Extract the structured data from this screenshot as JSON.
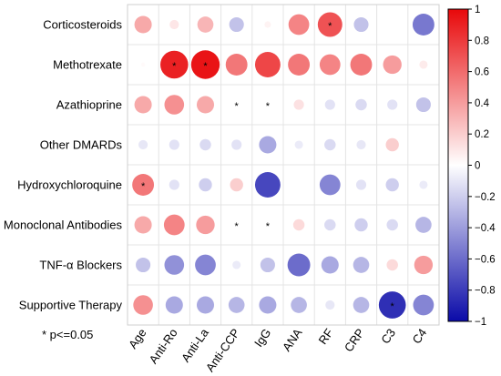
{
  "chart_data": {
    "type": "heatmap",
    "title": "",
    "xlabel": "",
    "ylabel": "",
    "rows": [
      "Corticosteroids",
      "Methotrexate",
      "Azathioprine",
      "Other DMARDs",
      "Hydroxychloroquine",
      "Monoclonal Antibodies",
      "TNF-α Blockers",
      "Supportive Therapy"
    ],
    "columns": [
      "Age",
      "Anti-Ro",
      "Anti-La",
      "Anti-CCP",
      "IgG",
      "ANA",
      "RF",
      "CRP",
      "C3",
      "C4"
    ],
    "values": [
      [
        0.35,
        0.1,
        0.3,
        -0.25,
        0.05,
        0.5,
        0.7,
        -0.25,
        0.0,
        -0.55
      ],
      [
        0.02,
        0.9,
        0.95,
        0.55,
        0.75,
        0.55,
        0.5,
        0.55,
        0.4,
        0.08
      ],
      [
        0.35,
        0.45,
        0.35,
        0.0,
        0.0,
        0.12,
        -0.12,
        -0.15,
        -0.12,
        -0.25
      ],
      [
        -0.1,
        -0.12,
        -0.15,
        -0.12,
        -0.35,
        -0.08,
        -0.15,
        -0.1,
        0.2,
        0.0
      ],
      [
        0.55,
        -0.12,
        -0.2,
        0.2,
        -0.75,
        0.0,
        -0.5,
        -0.12,
        -0.2,
        -0.08
      ],
      [
        0.35,
        0.5,
        0.4,
        0.0,
        0.0,
        0.15,
        -0.15,
        -0.2,
        -0.15,
        -0.3
      ],
      [
        -0.25,
        -0.45,
        -0.5,
        -0.08,
        -0.25,
        -0.6,
        -0.35,
        -0.3,
        0.15,
        0.4
      ],
      [
        0.45,
        -0.35,
        -0.35,
        -0.3,
        -0.35,
        -0.3,
        -0.1,
        -0.3,
        -0.85,
        -0.5
      ]
    ],
    "significant": [
      [
        0,
        6
      ],
      [
        1,
        1
      ],
      [
        1,
        2
      ],
      [
        2,
        3
      ],
      [
        2,
        4
      ],
      [
        4,
        0
      ],
      [
        5,
        3
      ],
      [
        5,
        4
      ],
      [
        7,
        8
      ]
    ],
    "color_scale": {
      "min": -1,
      "max": 1,
      "low": "#0a0aa8",
      "mid": "#ffffff",
      "high": "#e8080a"
    },
    "colorbar_ticks": [
      1,
      0.8,
      0.6,
      0.4,
      0.2,
      0,
      -0.2,
      -0.4,
      -0.6,
      -0.8,
      -1
    ],
    "grid": true
  },
  "footnote": "* p<=0.05"
}
